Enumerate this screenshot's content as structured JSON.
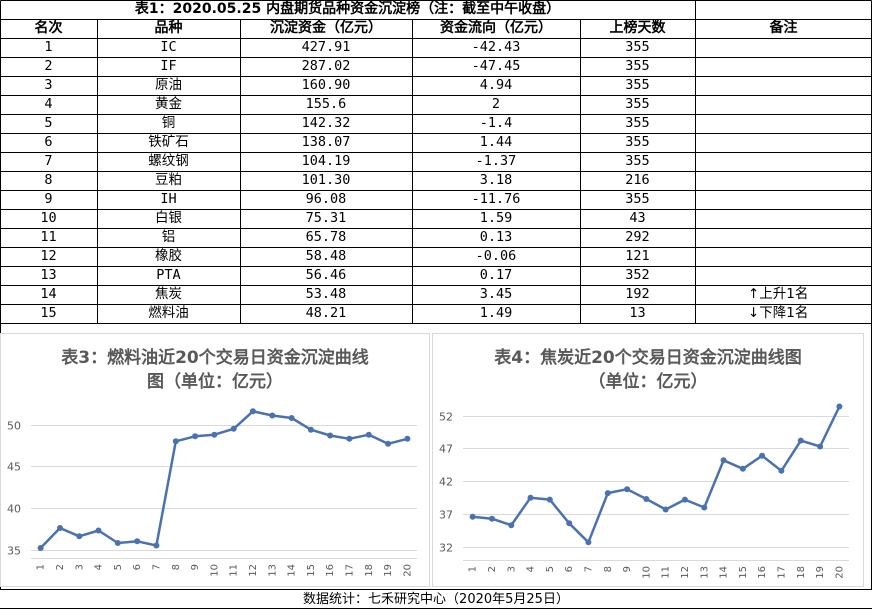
{
  "table": {
    "title": "表1：2020.05.25 内盘期货品种资金沉淀榜（注：截至中午收盘）",
    "headers": [
      "名次",
      "品种",
      "沉淀资金（亿元）",
      "资金流向（亿元）",
      "上榜天数",
      "备注"
    ],
    "rows": [
      [
        "1",
        "IC",
        "427.91",
        "-42.43",
        "355",
        ""
      ],
      [
        "2",
        "IF",
        "287.02",
        "-47.45",
        "355",
        ""
      ],
      [
        "3",
        "原油",
        "160.90",
        "4.94",
        "355",
        ""
      ],
      [
        "4",
        "黄金",
        "155.6",
        "2",
        "355",
        ""
      ],
      [
        "5",
        "铜",
        "142.32",
        "-1.4",
        "355",
        ""
      ],
      [
        "6",
        "铁矿石",
        "138.07",
        "1.44",
        "355",
        ""
      ],
      [
        "7",
        "螺纹钢",
        "104.19",
        "-1.37",
        "355",
        ""
      ],
      [
        "8",
        "豆粕",
        "101.30",
        "3.18",
        "216",
        ""
      ],
      [
        "9",
        "IH",
        "96.08",
        "-11.76",
        "355",
        ""
      ],
      [
        "10",
        "白银",
        "75.31",
        "1.59",
        "43",
        ""
      ],
      [
        "11",
        "铝",
        "65.78",
        "0.13",
        "292",
        ""
      ],
      [
        "12",
        "橡胶",
        "58.48",
        "-0.06",
        "121",
        ""
      ],
      [
        "13",
        "PTA",
        "56.46",
        "0.17",
        "352",
        ""
      ],
      [
        "14",
        "焦炭",
        "53.48",
        "3.45",
        "192",
        "↑上升1名"
      ],
      [
        "15",
        "燃料油",
        "48.21",
        "1.49",
        "13",
        "↓下降1名"
      ]
    ]
  },
  "footer": "数据统计：七禾研究中心（2020年5月25日）",
  "colors": {
    "line": "#4a72b0",
    "grid": "#d9d9d9",
    "axis_text": "#595959",
    "title": "#595959"
  },
  "chart_data": [
    {
      "type": "line",
      "title": "表3：燃料油近20个交易日资金沉淀曲线图（单位：亿元）",
      "title_lines": [
        "表3：燃料油近20个交易日资金沉淀曲线",
        "图（单位：亿元）"
      ],
      "x": [
        "1",
        "2",
        "3",
        "4",
        "5",
        "6",
        "7",
        "8",
        "9",
        "10",
        "11",
        "12",
        "13",
        "14",
        "15",
        "16",
        "17",
        "18",
        "19",
        "20"
      ],
      "series": [
        {
          "values": [
            35.2,
            37.6,
            36.6,
            37.3,
            35.8,
            36.0,
            35.5,
            48.0,
            48.6,
            48.8,
            49.5,
            51.6,
            51.1,
            50.8,
            49.4,
            48.7,
            48.3,
            48.8,
            47.7,
            48.3
          ]
        }
      ],
      "yticks": [
        35,
        40,
        45,
        50
      ],
      "ylim": [
        34,
        52
      ],
      "grid": true,
      "legend": "none"
    },
    {
      "type": "line",
      "title": "表4：焦炭近20个交易日资金沉淀曲线图（单位：亿元）",
      "title_lines": [
        "表4：焦炭近20个交易日资金沉淀曲线图",
        "（单位：亿元）"
      ],
      "x": [
        "1",
        "2",
        "3",
        "4",
        "5",
        "6",
        "7",
        "8",
        "9",
        "10",
        "11",
        "12",
        "13",
        "14",
        "15",
        "16",
        "17",
        "18",
        "19",
        "20"
      ],
      "series": [
        {
          "values": [
            36.6,
            36.3,
            35.3,
            39.5,
            39.2,
            35.6,
            32.7,
            40.2,
            40.8,
            39.3,
            37.7,
            39.2,
            38.0,
            45.2,
            43.9,
            45.9,
            43.6,
            48.2,
            47.3,
            53.4
          ]
        }
      ],
      "yticks": [
        32,
        37,
        42,
        47,
        52
      ],
      "ylim": [
        30,
        55
      ],
      "grid": true,
      "legend": "none"
    }
  ]
}
